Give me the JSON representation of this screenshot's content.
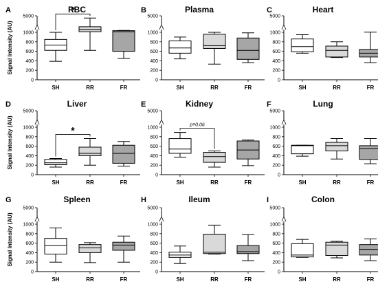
{
  "chart_data": [
    {
      "letter": "A",
      "title": "RBC",
      "type": "box",
      "ylabel": "Signal Intensity (AU)",
      "y_ticks": [
        "0",
        "200",
        "400",
        "600",
        "800",
        "1000",
        "5000"
      ],
      "categories": [
        "SH",
        "RR",
        "FR"
      ],
      "box_fill": [
        "#ffffff",
        "#d9d9d9",
        "#a6a6a6"
      ],
      "boxes": [
        {
          "category": "SH",
          "min": 390,
          "q1": 620,
          "median": 730,
          "q3": 850,
          "max": 1000
        },
        {
          "category": "RR",
          "min": 620,
          "q1": 1150,
          "median": 1700,
          "q3": 2350,
          "max": 4450
        },
        {
          "category": "FR",
          "min": 450,
          "q1": 600,
          "median": 1150,
          "q3": 1400,
          "max": 1450
        }
      ],
      "significance": {
        "between": [
          "SH",
          "RR"
        ],
        "label": "*"
      }
    },
    {
      "letter": "B",
      "title": "Plasma",
      "type": "box",
      "ylabel": "",
      "y_ticks": [
        "0",
        "200",
        "400",
        "600",
        "800",
        "1000",
        "5000"
      ],
      "categories": [
        "SH",
        "RR",
        "FR"
      ],
      "box_fill": [
        "#ffffff",
        "#d9d9d9",
        "#a6a6a6"
      ],
      "boxes": [
        {
          "category": "SH",
          "min": 440,
          "q1": 560,
          "median": 670,
          "q3": 820,
          "max": 900
        },
        {
          "category": "RR",
          "min": 330,
          "q1": 660,
          "median": 720,
          "q3": 960,
          "max": 1000
        },
        {
          "category": "FR",
          "min": 360,
          "q1": 430,
          "median": 620,
          "q3": 880,
          "max": 990
        }
      ]
    },
    {
      "letter": "C",
      "title": "Heart",
      "type": "box",
      "ylabel": "",
      "y_ticks": [
        "0",
        "200",
        "400",
        "600",
        "800",
        "1000",
        "5000"
      ],
      "categories": [
        "SH",
        "RR",
        "FR"
      ],
      "box_fill": [
        "#ffffff",
        "#d9d9d9",
        "#a6a6a6"
      ],
      "boxes": [
        {
          "category": "SH",
          "min": 560,
          "q1": 590,
          "median": 700,
          "q3": 860,
          "max": 950
        },
        {
          "category": "RR",
          "min": 470,
          "q1": 480,
          "median": 620,
          "q3": 710,
          "max": 800
        },
        {
          "category": "FR",
          "min": 360,
          "q1": 480,
          "median": 560,
          "q3": 640,
          "max": 1050
        }
      ]
    },
    {
      "letter": "D",
      "title": "Liver",
      "type": "box",
      "ylabel": "Signal Intensity (AU)",
      "y_ticks": [
        "0",
        "200",
        "400",
        "600",
        "800",
        "1000",
        "5000"
      ],
      "categories": [
        "SH",
        "RR",
        "FR"
      ],
      "box_fill": [
        "#ffffff",
        "#d9d9d9",
        "#a6a6a6"
      ],
      "boxes": [
        {
          "category": "SH",
          "min": 160,
          "q1": 210,
          "median": 250,
          "q3": 320,
          "max": 340
        },
        {
          "category": "RR",
          "min": 200,
          "q1": 400,
          "median": 450,
          "q3": 580,
          "max": 760
        },
        {
          "category": "FR",
          "min": 180,
          "q1": 240,
          "median": 450,
          "q3": 620,
          "max": 700
        }
      ],
      "significance": {
        "between": [
          "SH",
          "RR"
        ],
        "label": "*"
      }
    },
    {
      "letter": "E",
      "title": "Kidney",
      "type": "box",
      "ylabel": "",
      "y_ticks": [
        "0",
        "200",
        "400",
        "600",
        "800",
        "1000",
        "5000"
      ],
      "categories": [
        "SH",
        "RR",
        "FR"
      ],
      "box_fill": [
        "#ffffff",
        "#d9d9d9",
        "#a6a6a6"
      ],
      "boxes": [
        {
          "category": "SH",
          "min": 370,
          "q1": 450,
          "median": 540,
          "q3": 760,
          "max": 890
        },
        {
          "category": "RR",
          "min": 160,
          "q1": 260,
          "median": 380,
          "q3": 470,
          "max": 500
        },
        {
          "category": "FR",
          "min": 190,
          "q1": 330,
          "median": 520,
          "q3": 710,
          "max": 730
        }
      ],
      "significance": {
        "between": [
          "SH",
          "RR"
        ],
        "label": "p=0.06"
      }
    },
    {
      "letter": "F",
      "title": "Lung",
      "type": "box",
      "ylabel": "",
      "y_ticks": [
        "0",
        "200",
        "400",
        "600",
        "800",
        "1000",
        "5000"
      ],
      "categories": [
        "SH",
        "RR",
        "FR"
      ],
      "box_fill": [
        "#ffffff",
        "#d9d9d9",
        "#a6a6a6"
      ],
      "boxes": [
        {
          "category": "SH",
          "min": 390,
          "q1": 440,
          "median": 610,
          "q3": 620,
          "max": 620
        },
        {
          "category": "RR",
          "min": 330,
          "q1": 500,
          "median": 610,
          "q3": 680,
          "max": 760
        },
        {
          "category": "FR",
          "min": 230,
          "q1": 320,
          "median": 550,
          "q3": 610,
          "max": 760
        }
      ]
    },
    {
      "letter": "G",
      "title": "Spleen",
      "type": "box",
      "ylabel": "Signal Intensity (AU)",
      "y_ticks": [
        "0",
        "200",
        "400",
        "600",
        "800",
        "1000",
        "5000"
      ],
      "categories": [
        "SH",
        "RR",
        "FR"
      ],
      "box_fill": [
        "#ffffff",
        "#d9d9d9",
        "#a6a6a6"
      ],
      "boxes": [
        {
          "category": "SH",
          "min": 200,
          "q1": 370,
          "median": 550,
          "q3": 700,
          "max": 920
        },
        {
          "category": "RR",
          "min": 190,
          "q1": 400,
          "median": 500,
          "q3": 570,
          "max": 610
        },
        {
          "category": "FR",
          "min": 200,
          "q1": 450,
          "median": 560,
          "q3": 620,
          "max": 750
        }
      ]
    },
    {
      "letter": "H",
      "title": "Ileum",
      "type": "box",
      "ylabel": "",
      "y_ticks": [
        "0",
        "200",
        "400",
        "600",
        "800",
        "1000",
        "5000"
      ],
      "categories": [
        "SH",
        "RR",
        "FR"
      ],
      "box_fill": [
        "#ffffff",
        "#d9d9d9",
        "#a6a6a6"
      ],
      "boxes": [
        {
          "category": "SH",
          "min": 170,
          "q1": 300,
          "median": 350,
          "q3": 410,
          "max": 540
        },
        {
          "category": "RR",
          "min": 370,
          "q1": 380,
          "median": 410,
          "q3": 790,
          "max": 980
        },
        {
          "category": "FR",
          "min": 230,
          "q1": 380,
          "median": 420,
          "q3": 550,
          "max": 780
        }
      ]
    },
    {
      "letter": "I",
      "title": "Colon",
      "type": "box",
      "ylabel": "",
      "y_ticks": [
        "0",
        "200",
        "400",
        "600",
        "800",
        "1000",
        "5000"
      ],
      "categories": [
        "SH",
        "RR",
        "FR"
      ],
      "box_fill": [
        "#ffffff",
        "#d9d9d9",
        "#a6a6a6"
      ],
      "boxes": [
        {
          "category": "SH",
          "min": 300,
          "q1": 310,
          "median": 350,
          "q3": 590,
          "max": 680
        },
        {
          "category": "RR",
          "min": 290,
          "q1": 340,
          "median": 560,
          "q3": 620,
          "max": 640
        },
        {
          "category": "FR",
          "min": 230,
          "q1": 350,
          "median": 470,
          "q3": 570,
          "max": 690
        }
      ]
    }
  ]
}
